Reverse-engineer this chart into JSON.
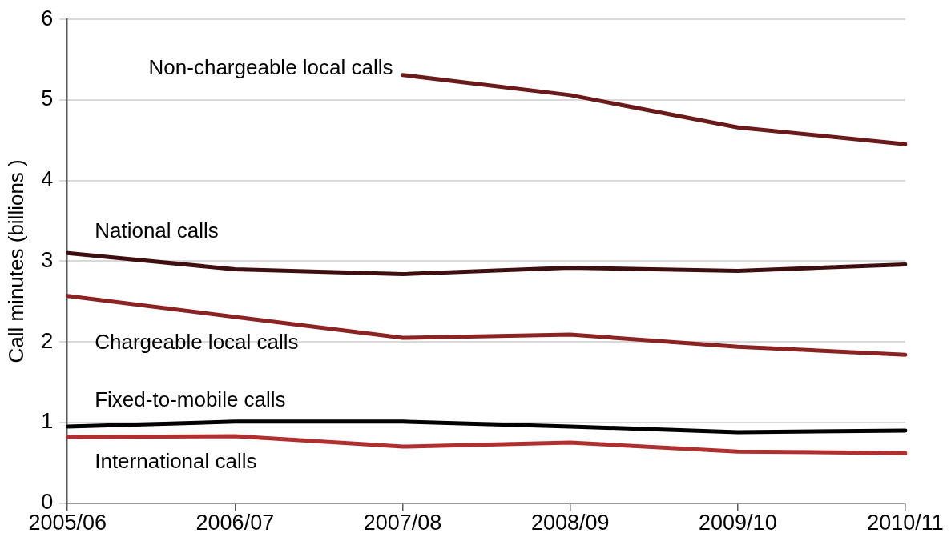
{
  "chart_data": {
    "type": "line",
    "ylabel": "Call minutes (billions )",
    "categories": [
      "2005/06",
      "2006/07",
      "2007/08",
      "2008/09",
      "2009/10",
      "2010/11"
    ],
    "series": [
      {
        "name": "Non-chargeable local calls",
        "color": "#6b1a1a",
        "values": [
          null,
          null,
          5.31,
          5.06,
          4.66,
          4.45
        ]
      },
      {
        "name": "National calls",
        "color": "#3f0f0f",
        "values": [
          3.1,
          2.9,
          2.84,
          2.92,
          2.88,
          2.96
        ]
      },
      {
        "name": "Chargeable local calls",
        "color": "#8b2323",
        "values": [
          2.57,
          2.31,
          2.05,
          2.09,
          1.94,
          1.84
        ]
      },
      {
        "name": "Fixed-to-mobile calls",
        "color": "#000000",
        "values": [
          0.95,
          1.01,
          1.01,
          0.95,
          0.88,
          0.9
        ]
      },
      {
        "name": "International calls",
        "color": "#b03030",
        "values": [
          0.82,
          0.83,
          0.7,
          0.75,
          0.64,
          0.62
        ]
      }
    ],
    "ylim": [
      0,
      6
    ],
    "yticks": [
      0,
      1,
      2,
      3,
      4,
      5,
      6
    ],
    "grid": "y",
    "legend": false,
    "marker": "none",
    "line_style": "solid"
  }
}
